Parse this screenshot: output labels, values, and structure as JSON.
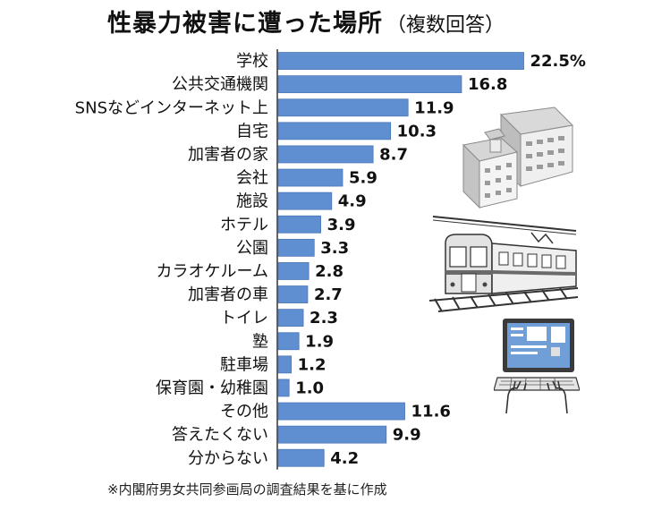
{
  "header": {
    "title": "性暴力被害に遭った場所",
    "subtitle": "（複数回答）"
  },
  "chart_data": {
    "type": "bar",
    "orientation": "horizontal",
    "title": "性暴力被害に遭った場所（複数回答）",
    "categories": [
      "学校",
      "公共交通機関",
      "SNSなどインターネット上",
      "自宅",
      "加害者の家",
      "会社",
      "施設",
      "ホテル",
      "公園",
      "カラオケルーム",
      "加害者の車",
      "トイレ",
      "塾",
      "駐車場",
      "保育園・幼稚園",
      "その他",
      "答えたくない",
      "分からない"
    ],
    "values": [
      22.5,
      16.8,
      11.9,
      10.3,
      8.7,
      5.9,
      4.9,
      3.9,
      3.3,
      2.8,
      2.7,
      2.3,
      1.9,
      1.2,
      1.0,
      11.6,
      9.9,
      4.2
    ],
    "value_labels": [
      "22.5%",
      "16.8",
      "11.9",
      "10.3",
      "8.7",
      "5.9",
      "4.9",
      "3.9",
      "3.3",
      "2.8",
      "2.7",
      "2.3",
      "1.9",
      "1.2",
      "1.0",
      "11.6",
      "9.9",
      "4.2"
    ],
    "unit": "%",
    "bar_color": "#5f8fd0",
    "grid": false
  },
  "footer": {
    "note": "※内閣府男女共同参画局の調査結果を基に作成"
  },
  "illustrations": [
    "school-building-icon",
    "train-icon",
    "laptop-icon"
  ]
}
